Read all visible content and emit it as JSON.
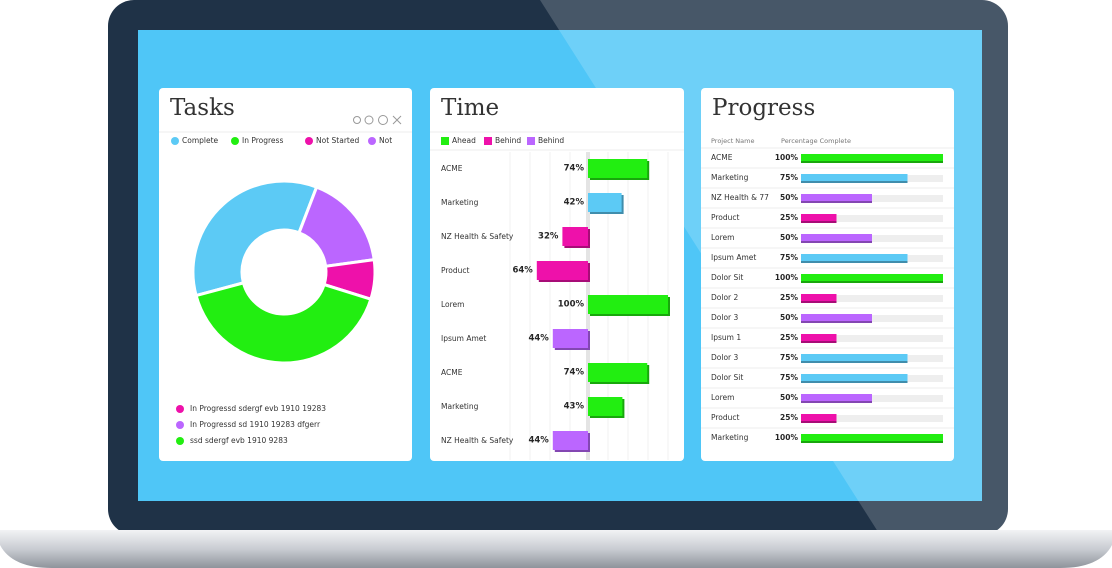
{
  "chart_data": [
    {
      "type": "pie",
      "title": "Tasks",
      "categories": [
        "Complete",
        "In Progress",
        "Not Started",
        "Not"
      ],
      "values": [
        35,
        41,
        7,
        17
      ],
      "colors": [
        "#5ccaf5",
        "#22ee11",
        "#ee11aa",
        "#bb66ff"
      ],
      "slice_order": [
        0,
        3,
        2,
        1
      ],
      "footer_legend": [
        {
          "name": "In Progressd sdergf  evb  1910   19283",
          "color": "#ee11aa"
        },
        {
          "name": "In Progressd sd 1910    19283 dfgerr",
          "color": "#bb66ff"
        },
        {
          "name": "ssd sdergf  evb  1910 9283",
          "color": "#22ee11"
        }
      ]
    },
    {
      "type": "bar",
      "title": "Time",
      "legend": [
        {
          "name": "Ahead",
          "color": "#22ee11"
        },
        {
          "name": "Behind",
          "color": "#ee11aa"
        },
        {
          "name": "Behind",
          "color": "#bb66ff"
        }
      ],
      "categories": [
        "ACME",
        "Marketing",
        "NZ Health & Safety",
        "Product",
        "Lorem",
        "Ipsum Amet",
        "ACME",
        "Marketing",
        "NZ Health & Safety"
      ],
      "values": [
        74,
        42,
        -32,
        -64,
        100,
        -44,
        74,
        43,
        -44
      ],
      "value_labels": [
        "74%",
        "42%",
        "32%",
        "64%",
        "100%",
        "44%",
        "74%",
        "43%",
        "44%"
      ],
      "colors": [
        "#22ee11",
        "#5ccaf5",
        "#ee11aa",
        "#ee11aa",
        "#22ee11",
        "#bb66ff",
        "#22ee11",
        "#22ee11",
        "#bb66ff"
      ],
      "xlim": [
        -100,
        100
      ]
    },
    {
      "type": "progress",
      "title": "Progress",
      "columns": [
        "Project  Name",
        "Percentage Complete"
      ],
      "categories": [
        "ACME",
        "Marketing",
        "NZ Health & 77",
        "Product",
        "Lorem",
        "Ipsum Amet",
        "Dolor Sit",
        "Dolor 2",
        "Dolor 3",
        "Ipsum 1",
        "Dolor 3",
        "Dolor Sit",
        "Lorem",
        "Product",
        "Marketing"
      ],
      "values": [
        100,
        75,
        50,
        25,
        50,
        75,
        100,
        25,
        50,
        25,
        75,
        75,
        50,
        25,
        100
      ],
      "value_labels": [
        "100%",
        "75%",
        "50%",
        "25%",
        "50%",
        "75%",
        "100%",
        "25%",
        "50%",
        "25%",
        "75%",
        "75%",
        "50%",
        "25%",
        "100%"
      ],
      "colors": [
        "#22ee11",
        "#5ccaf5",
        "#bb66ff",
        "#ee11aa",
        "#bb66ff",
        "#5ccaf5",
        "#22ee11",
        "#ee11aa",
        "#bb66ff",
        "#ee11aa",
        "#5ccaf5",
        "#5ccaf5",
        "#bb66ff",
        "#ee11aa",
        "#22ee11"
      ],
      "xlim": [
        0,
        100
      ]
    }
  ]
}
